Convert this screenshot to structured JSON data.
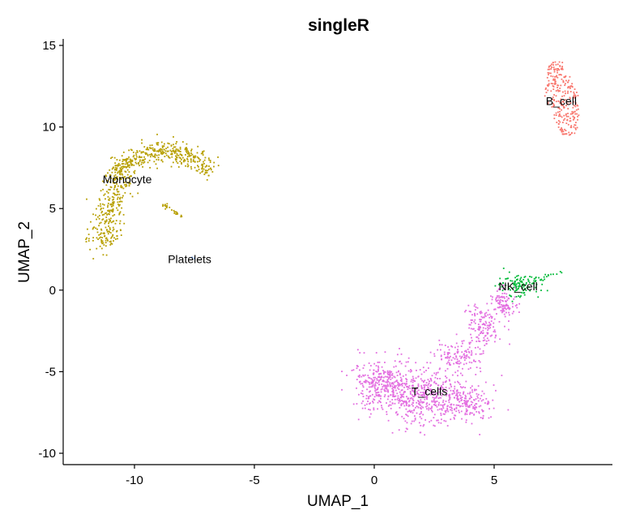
{
  "chart_data": {
    "type": "scatter",
    "title": "singleR",
    "xlabel": "UMAP_1",
    "ylabel": "UMAP_2",
    "xlim": [
      -13,
      10
    ],
    "ylim": [
      -10.8,
      15.5
    ],
    "xticks": [
      -10,
      -5,
      0,
      5
    ],
    "yticks": [
      -10,
      -5,
      0,
      5,
      10,
      15
    ],
    "grid": false,
    "legend": "none",
    "clusters": [
      {
        "name": "B_cell",
        "color": "#F8766D",
        "label_pos": [
          7.8,
          11.6
        ],
        "shape": {
          "center": [
            7.85,
            11.6
          ],
          "rx": 0.75,
          "ry": 1.75,
          "spread_y": [
            9.5,
            14.0
          ],
          "n": 260
        }
      },
      {
        "name": "Monocyte",
        "color": "#B79F00",
        "label_pos": [
          -10.3,
          6.8
        ],
        "shape": {
          "arc": true,
          "n": 700
        },
        "tail": {
          "from": [
            -9.0,
            5.4
          ],
          "to": [
            -8.0,
            4.5
          ],
          "n": 25
        }
      },
      {
        "name": "Platelets",
        "color": "#619CFF",
        "label_pos": [
          -7.7,
          1.9
        ],
        "points": [
          [
            -7.6,
            2.0
          ],
          [
            -7.5,
            1.95
          ]
        ]
      },
      {
        "name": "NK_cell",
        "color": "#00BA38",
        "label_pos": [
          6.0,
          0.25
        ],
        "shape": {
          "center": [
            6.0,
            0.3
          ],
          "rx": 0.75,
          "ry": 0.55,
          "n": 110
        },
        "tail": {
          "from": [
            6.6,
            0.4
          ],
          "to": [
            7.8,
            1.2
          ],
          "n": 18
        }
      },
      {
        "name": "T_cells",
        "color": "#E36EE0",
        "label_pos": [
          2.3,
          -6.2
        ],
        "shape": {
          "blob": true,
          "n": 1300
        }
      }
    ]
  }
}
